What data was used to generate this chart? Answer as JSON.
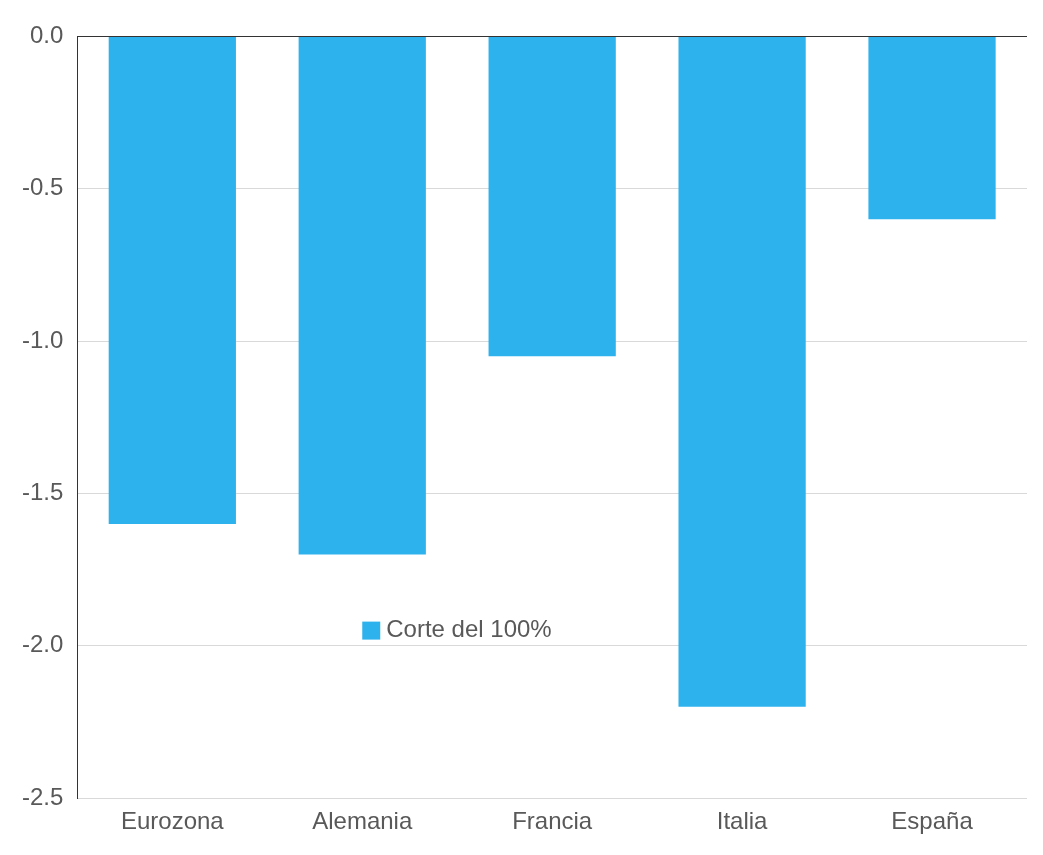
{
  "chart_data": {
    "type": "bar",
    "categories": [
      "Eurozona",
      "Alemania",
      "Francia",
      "Italia",
      "España"
    ],
    "series": [
      {
        "name": "Corte del 100%",
        "color": "#2eb2ee",
        "values": [
          -1.6,
          -1.7,
          -1.05,
          -2.2,
          -0.6
        ]
      }
    ],
    "ylim": [
      -2.5,
      0
    ],
    "yticks": [
      {
        "value": -2.5,
        "label": "-2.5"
      },
      {
        "value": -2,
        "label": "-2.0"
      },
      {
        "value": -1.5,
        "label": "-1.5"
      },
      {
        "value": -1,
        "label": "-1.0"
      },
      {
        "value": -0.5,
        "label": "-0.5"
      },
      {
        "value": 0,
        "label": "0.0"
      }
    ],
    "grid": "y",
    "legend": "center"
  }
}
